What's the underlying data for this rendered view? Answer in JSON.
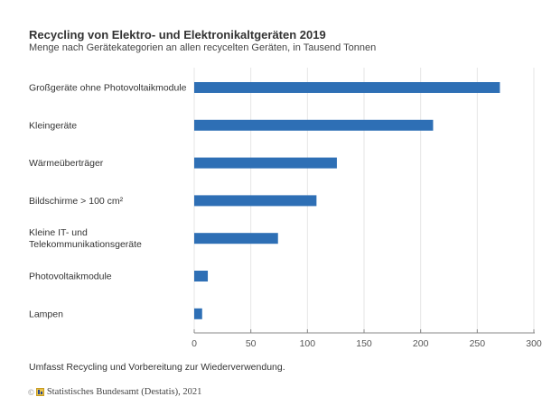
{
  "header": {
    "title": "Recycling von Elektro- und Elektronikaltgeräten 2019",
    "subtitle": "Menge nach Gerätekategorien an allen recycelten Geräten, in Tausend Tonnen"
  },
  "footer": {
    "note": "Umfasst Recycling und Vorbereitung zur Wiederverwendung.",
    "copyright_symbol": "©",
    "source": "Statistisches Bundesamt (Destatis), 2021"
  },
  "colors": {
    "bar": "#2e6fb5",
    "grid": "#e6e6e6",
    "axis": "#888888"
  },
  "chart_data": {
    "type": "bar",
    "orientation": "horizontal",
    "title": "Recycling von Elektro- und Elektronikaltgeräten 2019",
    "subtitle": "Menge nach Gerätekategorien an allen recycelten Geräten, in Tausend Tonnen",
    "xlabel": "",
    "ylabel": "",
    "categories": [
      [
        "Großgeräte ohne Photovoltaikmodule"
      ],
      [
        "Kleingeräte"
      ],
      [
        "Wärmeüberträger"
      ],
      [
        "Bildschirme > 100 cm²"
      ],
      [
        "Kleine IT- und",
        "Telekommunikationsgeräte"
      ],
      [
        "Photovoltaikmodule"
      ],
      [
        "Lampen"
      ]
    ],
    "values": [
      270,
      211,
      126,
      108,
      74,
      12,
      7
    ],
    "xlim": [
      0,
      300
    ],
    "xticks": [
      0,
      50,
      100,
      150,
      200,
      250,
      300
    ],
    "grid": true,
    "legend": "none",
    "unit": "Tausend Tonnen"
  }
}
